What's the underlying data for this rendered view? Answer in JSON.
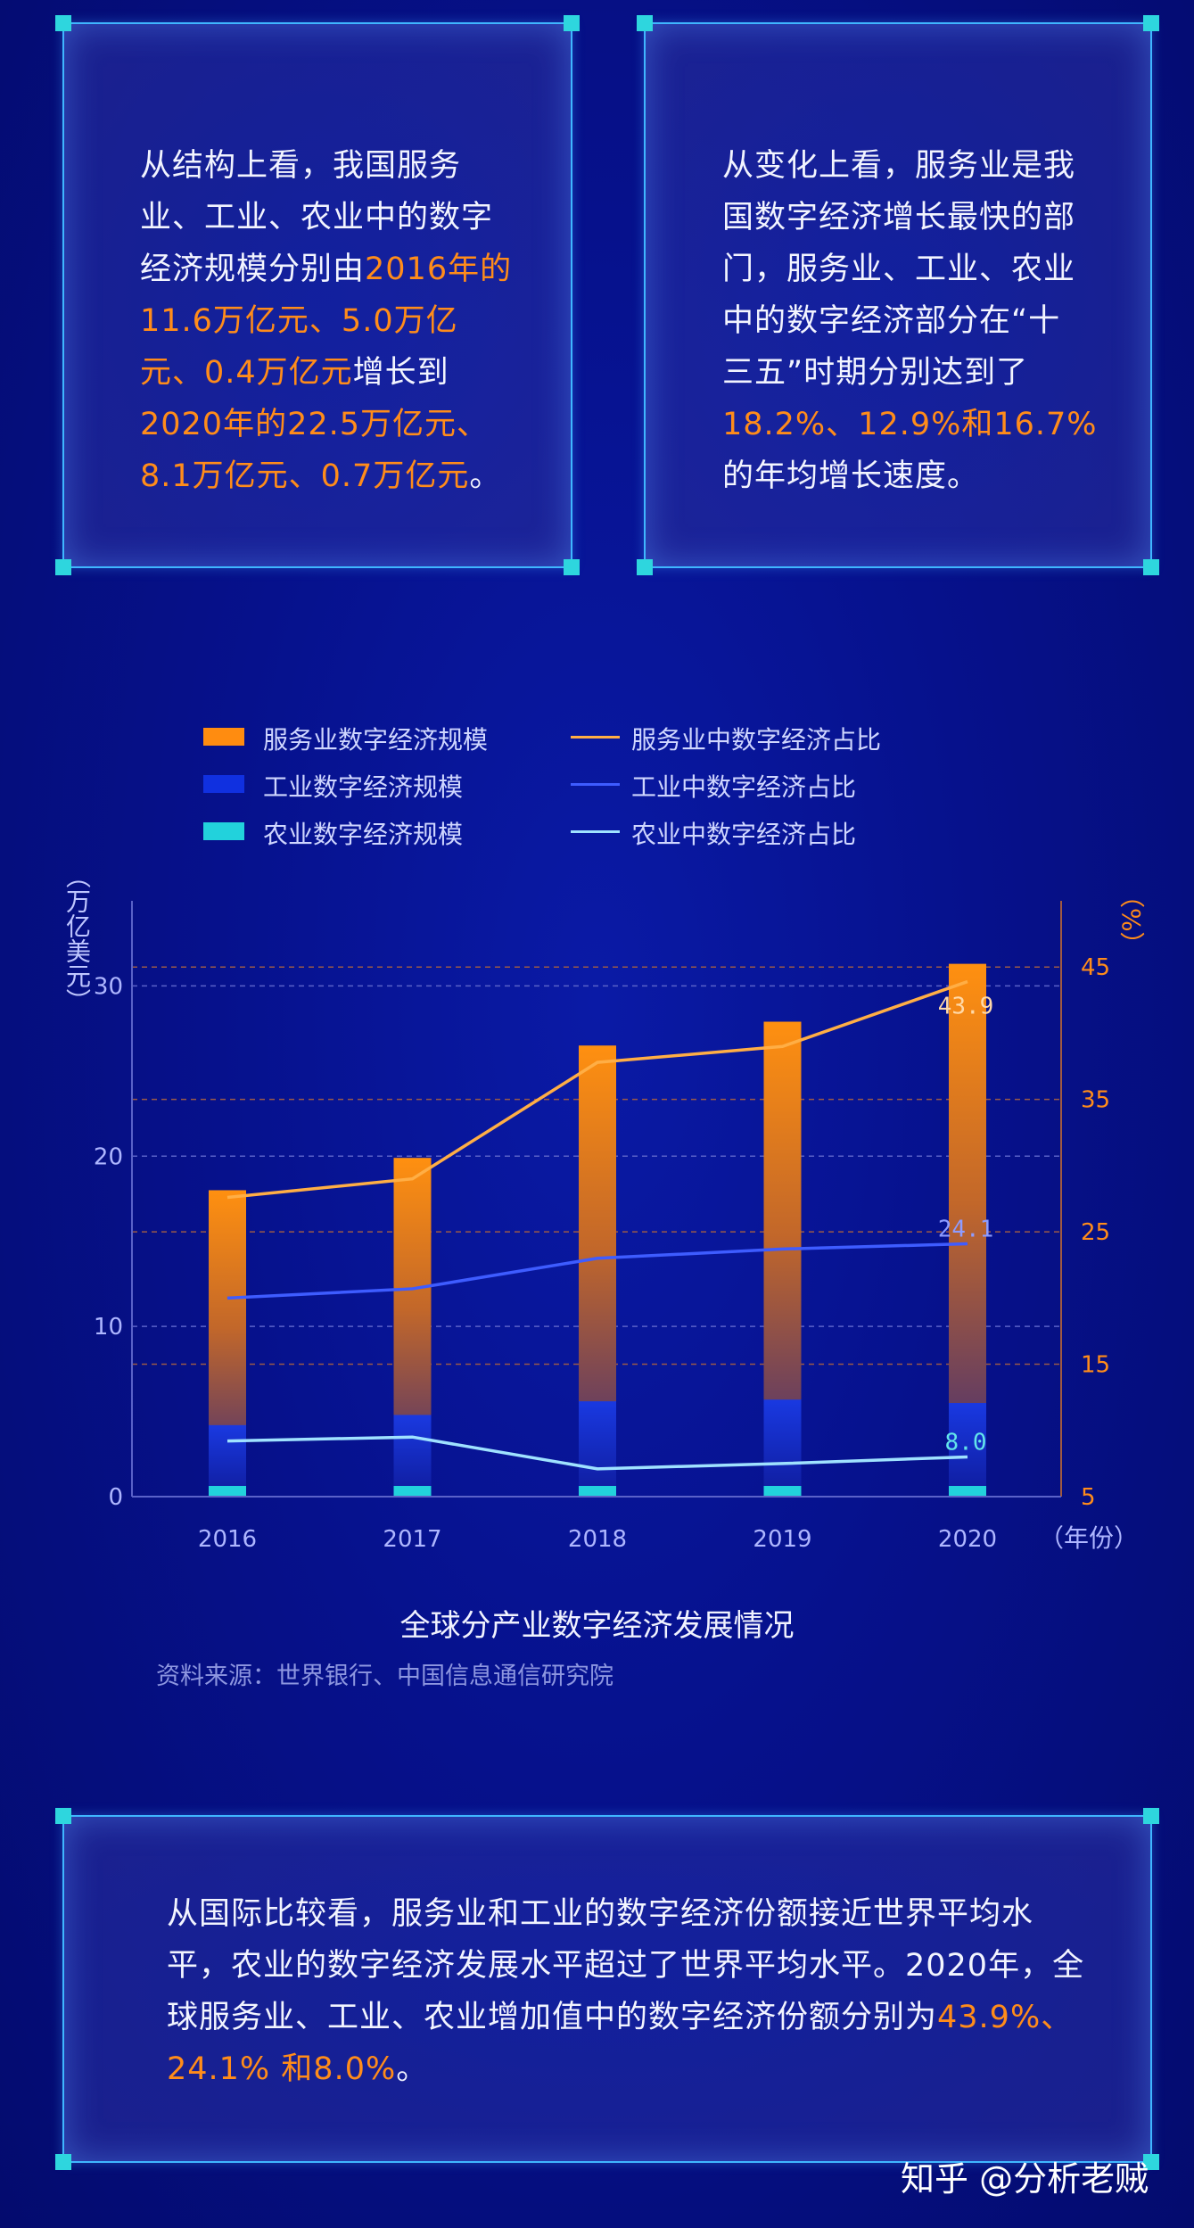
{
  "box1": {
    "lines": [
      [
        {
          "t": "从结构上看，我国服务",
          "h": false
        }
      ],
      [
        {
          "t": "业、工业、农业中的数字",
          "h": false
        }
      ],
      [
        {
          "t": "经济规模分别由",
          "h": false
        },
        {
          "t": "2016年的",
          "h": true
        }
      ],
      [
        {
          "t": "11.6万亿元、5.0万亿",
          "h": true
        }
      ],
      [
        {
          "t": "元、0.4万亿元",
          "h": true
        },
        {
          "t": "增长到",
          "h": false
        }
      ],
      [
        {
          "t": "2020年的22.5万亿元、",
          "h": true
        }
      ],
      [
        {
          "t": "8.1万亿元、0.7万亿元",
          "h": true
        },
        {
          "t": "。",
          "h": false
        }
      ]
    ]
  },
  "box2": {
    "lines": [
      [
        {
          "t": "从变化上看，服务业是我",
          "h": false
        }
      ],
      [
        {
          "t": "国数字经济增长最快的部",
          "h": false
        }
      ],
      [
        {
          "t": "门，服务业、工业、农业",
          "h": false
        }
      ],
      [
        {
          "t": "中的数字经济部分在“十",
          "h": false
        }
      ],
      [
        {
          "t": "三五”时期分别达到了",
          "h": false
        }
      ],
      [
        {
          "t": "18.2%、12.9%和16.7%",
          "h": true
        }
      ],
      [
        {
          "t": "的年均增长速度。",
          "h": false
        }
      ]
    ]
  },
  "box3": {
    "lines": [
      [
        {
          "t": "从国际比较看，服务业和工业的数字经济份额接近世界平均水",
          "h": false
        }
      ],
      [
        {
          "t": "平，农业的数字经济发展水平超过了世界平均水平。2020年，全",
          "h": false
        }
      ],
      [
        {
          "t": "球服务业、工业、农业增加值中的数字经济份额分别为",
          "h": false
        },
        {
          "t": "43.9%、",
          "h": true
        }
      ],
      [
        {
          "t": "24.1% 和8.0%",
          "h": true
        },
        {
          "t": "。",
          "h": false
        }
      ]
    ]
  },
  "legend": {
    "bar_services": "服务业数字经济规模",
    "bar_industry": "工业数字经济规模",
    "bar_agri": "农业数字经济规模",
    "line_services": "服务业中数字经济占比",
    "line_industry": "工业中数字经济占比",
    "line_agri": "农业中数字经济占比"
  },
  "chart_data": {
    "type": "bar",
    "categories": [
      "2016",
      "2017",
      "2018",
      "2019",
      "2020"
    ],
    "xunit": "（年份）",
    "ylabel_left": "（万亿美元）",
    "ylabel_right": "（%）",
    "ylim_left": [
      0,
      35
    ],
    "yticks_left": [
      0,
      10,
      20,
      30
    ],
    "ylim_right": [
      5,
      50
    ],
    "yticks_right": [
      5,
      15,
      25,
      35,
      45
    ],
    "bars": [
      {
        "name": "服务业数字经济规模",
        "values": [
          18.0,
          19.9,
          26.5,
          27.9,
          31.3
        ],
        "color": "#ff8c10"
      },
      {
        "name": "工业数字经济规模",
        "values": [
          4.2,
          4.8,
          5.6,
          5.7,
          5.5
        ],
        "color": "#1030e0"
      },
      {
        "name": "农业数字经济规模",
        "values": [
          0.6,
          0.6,
          0.5,
          0.6,
          0.6
        ],
        "color": "#22d2dc"
      }
    ],
    "lines": [
      {
        "name": "服务业中数字经济占比",
        "values": [
          27.6,
          29.0,
          37.8,
          39.0,
          43.9
        ],
        "color": "#ffae45"
      },
      {
        "name": "工业中数字经济占比",
        "values": [
          20.0,
          20.7,
          23.0,
          23.7,
          24.1
        ],
        "color": "#3e5cff"
      },
      {
        "name": "农业中数字经济占比",
        "values": [
          9.2,
          9.5,
          7.1,
          7.5,
          8.0
        ],
        "color": "#9fe2ff"
      }
    ],
    "data_labels": [
      {
        "series": "服务业中数字经济占比",
        "x": "2020",
        "text": "43.9",
        "color": "#ffd9a8"
      },
      {
        "series": "工业中数字经济占比",
        "x": "2020",
        "text": "24.1",
        "color": "#8e9cff"
      },
      {
        "series": "农业中数字经济占比",
        "x": "2020",
        "text": "8.0",
        "color": "#63e5ea"
      }
    ],
    "title": "全球分产业数字经济发展情况",
    "source": "资料来源：世界银行、中国信息通信研究院"
  },
  "watermark": "知乎 @分析老贼"
}
